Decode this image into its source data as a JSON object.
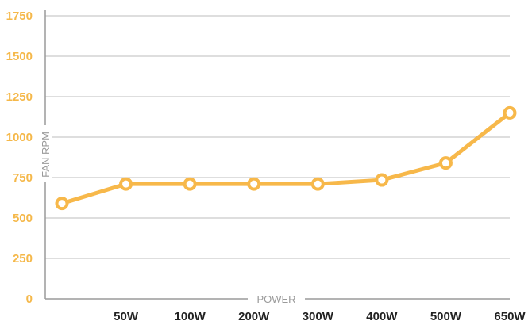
{
  "chart_data": {
    "type": "line",
    "title": "",
    "xlabel": "POWER",
    "ylabel": "FAN RPM",
    "categories": [
      "",
      "50W",
      "100W",
      "200W",
      "300W",
      "400W",
      "500W",
      "650W"
    ],
    "series": [
      {
        "values": [
          590,
          710,
          710,
          710,
          710,
          735,
          840,
          1150
        ]
      }
    ],
    "ylim": [
      0,
      1750
    ],
    "yticks": [
      "0",
      "250",
      "500",
      "750",
      "1000",
      "1250",
      "1500",
      "1750"
    ],
    "grid": true,
    "colors": {
      "line": "#f7b84a",
      "tick_y": "#f5b84a",
      "tick_x": "#222222",
      "grid": "#bdbdbd",
      "axis_label": "#9a9a9a"
    }
  }
}
